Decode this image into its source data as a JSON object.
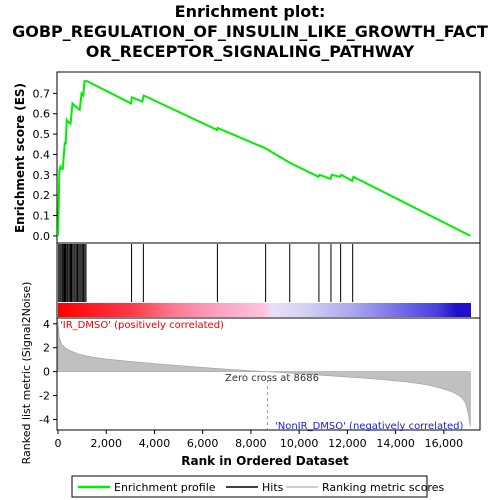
{
  "chart_data": {
    "type": "line",
    "title_lines": [
      "Enrichment plot:",
      "GOBP_REGULATION_OF_INSULIN_LIKE_GROWTH_FACT",
      "OR_RECEPTOR_SIGNALING_PATHWAY"
    ],
    "x_axis": {
      "label": "Rank in Ordered Dataset",
      "range": [
        0,
        17500
      ],
      "ticks": [
        0,
        2000,
        4000,
        6000,
        8000,
        10000,
        12000,
        14000,
        16000
      ],
      "tick_labels": [
        "0",
        "2,000",
        "4,000",
        "6,000",
        "8,000",
        "10,000",
        "12,000",
        "14,000",
        "16,000"
      ]
    },
    "es_panel": {
      "ylabel": "Enrichment score (ES)",
      "ylim": [
        -0.03,
        0.8
      ],
      "yticks": [
        0.0,
        0.1,
        0.2,
        0.3,
        0.4,
        0.5,
        0.6,
        0.7
      ],
      "ytick_labels": [
        "0.0",
        "0.1",
        "0.2",
        "0.3",
        "0.4",
        "0.5",
        "0.6",
        "0.7"
      ],
      "color": "#00ee00",
      "series": {
        "name": "Enrichment profile",
        "x": [
          0,
          30,
          60,
          100,
          140,
          200,
          280,
          320,
          360,
          430,
          520,
          600,
          680,
          900,
          980,
          1050,
          1100,
          1200,
          3030,
          3060,
          3500,
          3550,
          6600,
          6620,
          8600,
          9600,
          10800,
          10850,
          11300,
          11350,
          11700,
          11750,
          12200,
          12250,
          17100
        ],
        "y": [
          0.0,
          0.15,
          0.32,
          0.34,
          0.33,
          0.33,
          0.46,
          0.45,
          0.57,
          0.56,
          0.55,
          0.65,
          0.64,
          0.62,
          0.7,
          0.69,
          0.76,
          0.76,
          0.65,
          0.68,
          0.66,
          0.69,
          0.52,
          0.53,
          0.43,
          0.36,
          0.29,
          0.3,
          0.28,
          0.3,
          0.29,
          0.3,
          0.27,
          0.29,
          0.0
        ]
      }
    },
    "hits": [
      30,
      80,
      130,
      180,
      220,
      260,
      290,
      330,
      380,
      420,
      470,
      520,
      560,
      610,
      660,
      710,
      760,
      810,
      860,
      910,
      960,
      1010,
      1060,
      1110,
      1160,
      3050,
      3540,
      6610,
      8610,
      9610,
      10820,
      11320,
      11720,
      12220
    ],
    "rank_panel": {
      "ylabel": "Ranked list metric (Signal2Noise)",
      "ylim": [
        -4.8,
        4.4
      ],
      "yticks": [
        -4,
        -2,
        0,
        2,
        4
      ],
      "ytick_labels": [
        "-4",
        "-2",
        "0",
        "2",
        "4"
      ],
      "zero_cross": 8686,
      "zero_cross_label": "Zero cross at 8686",
      "pos_label": "'IR_DMSO' (positively correlated)",
      "neg_label": "'NonIR_DMSO' (negatively correlated)",
      "metric_x": [
        0,
        50,
        150,
        300,
        500,
        800,
        1200,
        2000,
        3000,
        4000,
        5000,
        6000,
        7000,
        8000,
        8686,
        9500,
        10500,
        11500,
        12500,
        13500,
        14500,
        15300,
        15900,
        16400,
        16700,
        16900,
        17000,
        17100
      ],
      "metric_y": [
        4.2,
        2.9,
        2.3,
        2.0,
        1.75,
        1.5,
        1.3,
        1.05,
        0.85,
        0.68,
        0.5,
        0.35,
        0.2,
        0.08,
        0.0,
        -0.12,
        -0.25,
        -0.38,
        -0.52,
        -0.68,
        -0.88,
        -1.1,
        -1.4,
        -1.75,
        -2.1,
        -2.6,
        -3.4,
        -4.6
      ]
    },
    "legend": [
      "Enrichment profile",
      "Hits",
      "Ranking metric scores"
    ]
  }
}
